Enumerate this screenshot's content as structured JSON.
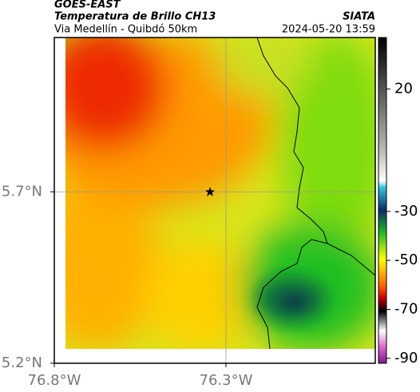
{
  "header": {
    "title": "GOES-EAST",
    "subtitle": "Temperatura de Brillo CH13",
    "source": "SIATA",
    "region": "Via Medellín - Quibdó 50km",
    "datetime": "2024-05-20 13:59"
  },
  "map": {
    "xlim": [
      -76.8,
      -75.865
    ],
    "ylim": [
      5.2,
      6.15
    ],
    "xticks": [
      {
        "value": -76.8,
        "label": "76.8°W"
      },
      {
        "value": -76.3,
        "label": "76.3°W"
      }
    ],
    "yticks": [
      {
        "value": 5.2,
        "label": "5.2°N"
      },
      {
        "value": 5.7,
        "label": "5.7°N"
      }
    ]
  },
  "colorbar": {
    "lim": [
      -92,
      41
    ],
    "ticks": [
      20,
      -30,
      -50,
      -70,
      -90
    ]
  }
}
